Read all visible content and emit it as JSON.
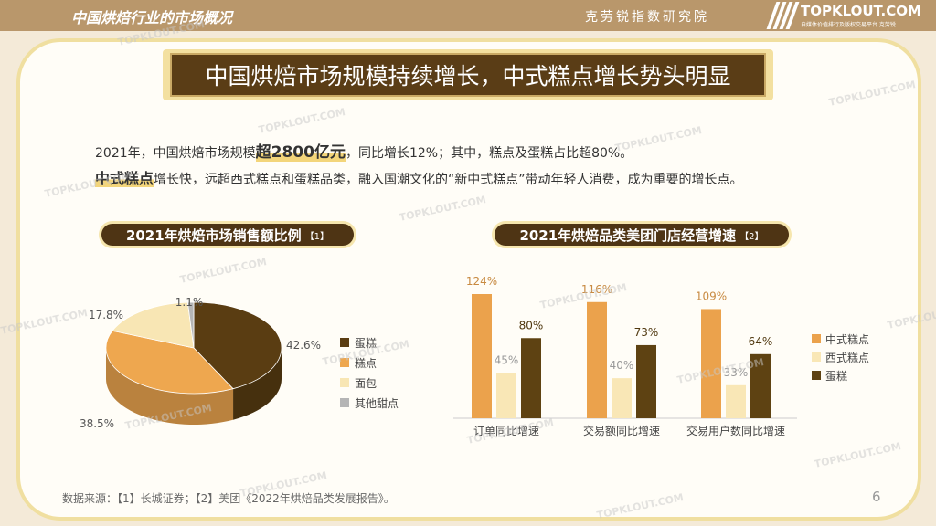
{
  "header": {
    "section_title": "中国烘焙行业的市场概况",
    "institute": "克劳锐指数研究院",
    "brand": "TOPKLOUT.COM",
    "brand_sub": "自媒体价值排行及版权交易平台 克劳锐"
  },
  "headline": "中国烘焙市场规模持续增长，中式糕点增长势头明显",
  "intro": {
    "line1_pre": "2021年，中国烘焙市场规模",
    "line1_big": "超2800亿元",
    "line1_post": "，同比增长12%；其中，糕点及蛋糕占比超80%。",
    "line2_hl": "中式糕点",
    "line2_post": "增长快，远超西式糕点和蛋糕品类，融入国潮文化的“新中式糕点”带动年轻人消费，成为重要的增长点。"
  },
  "pie_title": "2021年烘焙市场销售额比例",
  "pie_note": "【1】",
  "bar_title": "2021年烘焙品类美团门店经营增速",
  "bar_note": "【2】",
  "chart_data": [
    {
      "type": "pie",
      "slices": [
        {
          "label": "蛋糕",
          "value": 42.6,
          "display": "42.6%",
          "color": "#5a3d12"
        },
        {
          "label": "糕点",
          "value": 38.5,
          "display": "38.5%",
          "color": "#eea74f"
        },
        {
          "label": "面包",
          "value": 17.8,
          "display": "17.8%",
          "color": "#f8e6b4"
        },
        {
          "label": "其他甜点",
          "value": 1.1,
          "display": "1.1%",
          "color": "#b5b5b5"
        }
      ],
      "legend_position": "right"
    },
    {
      "type": "bar",
      "categories": [
        "订单同比增速",
        "交易额同比增速",
        "交易用户数同比增速"
      ],
      "series": [
        {
          "name": "中式糕点",
          "color": "#eba24c",
          "values": [
            124,
            116,
            109
          ],
          "labels": [
            "124%",
            "116%",
            "109%"
          ]
        },
        {
          "name": "西式糕点",
          "color": "#f9e7b6",
          "values": [
            45,
            40,
            33
          ],
          "labels": [
            "45%",
            "40%",
            "33%"
          ]
        },
        {
          "name": "蛋糕",
          "color": "#5e4212",
          "values": [
            80,
            73,
            64
          ],
          "labels": [
            "80%",
            "73%",
            "64%"
          ]
        }
      ],
      "ylim": [
        0,
        130
      ],
      "legend_position": "right"
    }
  ],
  "footer": {
    "source": "数据来源：【1】长城证券；【2】美团《2022年烘焙品类发展报告》。",
    "page": "6"
  },
  "watermark": "TOPKLOUT.COM"
}
